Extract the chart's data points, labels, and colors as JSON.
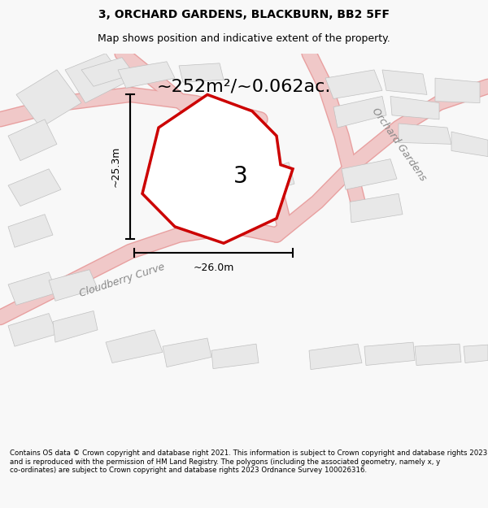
{
  "title_line1": "3, ORCHARD GARDENS, BLACKBURN, BB2 5FF",
  "title_line2": "Map shows position and indicative extent of the property.",
  "area_label": "~252m²/~0.062ac.",
  "plot_number": "3",
  "dim_width": "~26.0m",
  "dim_height": "~25.3m",
  "street_label1": "Cloudberry Curve",
  "street_label2": "Orchard Gardens",
  "footer_text": "Contains OS data © Crown copyright and database right 2021. This information is subject to Crown copyright and database rights 2023 and is reproduced with the permission of HM Land Registry. The polygons (including the associated geometry, namely x, y co-ordinates) are subject to Crown copyright and database rights 2023 Ordnance Survey 100026316.",
  "bg_color": "#f8f8f8",
  "map_bg": "#ffffff",
  "building_fill": "#e8e8e8",
  "building_edge": "#c0c0c0",
  "road_color": "#f0c8c8",
  "plot_fill": "#ffffff",
  "plot_edge": "#cc0000",
  "plot_edge_width": 2.5,
  "other_building_outline": "#d0d0d0"
}
